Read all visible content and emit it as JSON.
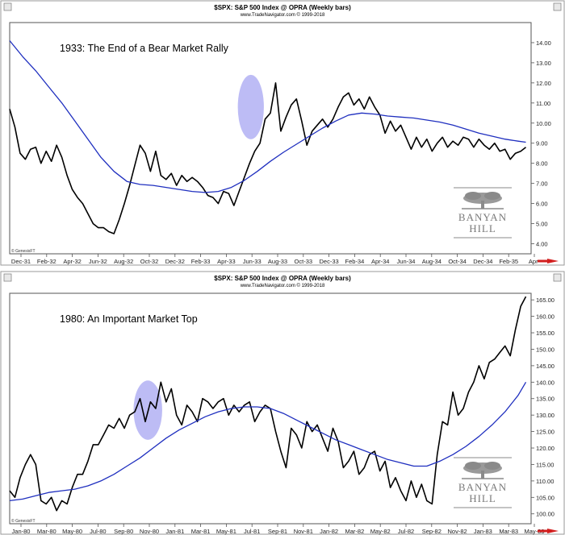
{
  "chart_data": [
    {
      "type": "line",
      "header": "$SPX:  S&P 500 Index @ OPRA  (Weekly bars)",
      "subheader": "www.TradeNavigator.com © 1999-2018",
      "annotation": "1933: The End of a Bear Market Rally",
      "watermark": "© GenesisFT",
      "logo": "BANYAN HILL",
      "ylim": [
        3.5,
        15.0
      ],
      "yticks": [
        4,
        5,
        6,
        7,
        8,
        9,
        10,
        11,
        12,
        13,
        14
      ],
      "ytick_labels": [
        "4.00",
        "5.00",
        "6.00",
        "7.00",
        "8.00",
        "9.00",
        "10.00",
        "11.00",
        "12.00",
        "13.00",
        "14.00"
      ],
      "x_tick_labels": [
        "Dec-31",
        "Feb-32",
        "Apr-32",
        "Jun-32",
        "Aug-32",
        "Oct-32",
        "Dec-32",
        "Feb-33",
        "Apr-33",
        "Jun-33",
        "Aug-33",
        "Oct-33",
        "Dec-33",
        "Feb-34",
        "Apr-34",
        "Jun-34",
        "Aug-34",
        "Oct-34",
        "Dec-34",
        "Feb-35",
        "Apr-"
      ],
      "x_range": [
        0,
        20
      ],
      "highlight": {
        "x": 9.25,
        "y": 10.8,
        "rx": 0.5,
        "ry": 1.6
      },
      "series": [
        {
          "color": "#000000",
          "x": [
            0,
            0.2,
            0.4,
            0.6,
            0.8,
            1.0,
            1.2,
            1.4,
            1.6,
            1.8,
            2.0,
            2.2,
            2.4,
            2.6,
            2.8,
            3.0,
            3.2,
            3.4,
            3.6,
            3.8,
            4.0,
            4.2,
            4.4,
            4.6,
            4.8,
            5.0,
            5.2,
            5.4,
            5.6,
            5.8,
            6.0,
            6.2,
            6.4,
            6.6,
            6.8,
            7.0,
            7.2,
            7.4,
            7.6,
            7.8,
            8.0,
            8.2,
            8.4,
            8.6,
            8.8,
            9.0,
            9.2,
            9.4,
            9.6,
            9.8,
            10.0,
            10.2,
            10.4,
            10.6,
            10.8,
            11.0,
            11.2,
            11.4,
            11.6,
            11.8,
            12.0,
            12.2,
            12.4,
            12.6,
            12.8,
            13.0,
            13.2,
            13.4,
            13.6,
            13.8,
            14.0,
            14.2,
            14.4,
            14.6,
            14.8,
            15.0,
            15.2,
            15.4,
            15.6,
            15.8,
            16.0,
            16.2,
            16.4,
            16.6,
            16.8,
            17.0,
            17.2,
            17.4,
            17.6,
            17.8,
            18.0,
            18.2,
            18.4,
            18.6,
            18.8,
            19.0,
            19.2,
            19.4,
            19.6,
            19.8
          ],
          "values": [
            10.7,
            9.8,
            8.5,
            8.2,
            8.7,
            8.8,
            8.0,
            8.6,
            8.1,
            8.9,
            8.3,
            7.4,
            6.7,
            6.3,
            6.0,
            5.5,
            5.0,
            4.8,
            4.8,
            4.6,
            4.5,
            5.2,
            6.0,
            6.9,
            7.9,
            8.9,
            8.5,
            7.6,
            8.6,
            7.4,
            7.2,
            7.5,
            6.9,
            7.4,
            7.1,
            7.3,
            7.1,
            6.8,
            6.4,
            6.3,
            6.0,
            6.6,
            6.5,
            5.9,
            6.6,
            7.3,
            8.0,
            8.6,
            9.0,
            10.2,
            10.5,
            12.0,
            9.6,
            10.3,
            10.9,
            11.2,
            10.1,
            8.9,
            9.6,
            9.9,
            10.2,
            9.8,
            10.2,
            10.8,
            11.3,
            11.5,
            10.9,
            11.2,
            10.7,
            11.3,
            10.8,
            10.4,
            9.5,
            10.1,
            9.6,
            9.9,
            9.3,
            8.7,
            9.3,
            8.8,
            9.2,
            8.6,
            9.0,
            9.3,
            8.8,
            9.1,
            8.9,
            9.3,
            9.2,
            8.8,
            9.2,
            8.9,
            8.7,
            9.0,
            8.6,
            8.7,
            8.2,
            8.5,
            8.6,
            8.8
          ]
        },
        {
          "color": "#1f2fbf",
          "x": [
            0,
            0.5,
            1.0,
            1.5,
            2.0,
            2.5,
            3.0,
            3.5,
            4.0,
            4.5,
            5.0,
            5.5,
            6.0,
            6.5,
            7.0,
            7.5,
            8.0,
            8.5,
            9.0,
            9.5,
            10.0,
            10.5,
            11.0,
            11.5,
            12.0,
            12.5,
            13.0,
            13.5,
            14.0,
            14.5,
            15.0,
            15.5,
            16.0,
            16.5,
            17.0,
            17.5,
            18.0,
            18.5,
            19.0,
            19.5,
            19.8
          ],
          "values": [
            14.1,
            13.3,
            12.6,
            11.8,
            11.0,
            10.1,
            9.2,
            8.3,
            7.6,
            7.1,
            6.95,
            6.9,
            6.8,
            6.7,
            6.6,
            6.55,
            6.6,
            6.8,
            7.15,
            7.6,
            8.1,
            8.55,
            8.95,
            9.35,
            9.75,
            10.1,
            10.4,
            10.5,
            10.45,
            10.35,
            10.3,
            10.25,
            10.15,
            10.05,
            9.9,
            9.7,
            9.5,
            9.35,
            9.2,
            9.1,
            9.05
          ]
        }
      ]
    },
    {
      "type": "line",
      "header": "$SPX:  S&P 500 Index @ OPRA  (Weekly bars)",
      "subheader": "www.TradeNavigator.com © 1999-2018",
      "annotation": "1980: An Important Market Top",
      "watermark": "© GenesisFT",
      "logo": "BANYAN HILL",
      "ylim": [
        97.0,
        167.0
      ],
      "yticks": [
        100,
        105,
        110,
        115,
        120,
        125,
        130,
        135,
        140,
        145,
        150,
        155,
        160,
        165
      ],
      "ytick_labels": [
        "100.00",
        "105.00",
        "110.00",
        "115.00",
        "120.00",
        "125.00",
        "130.00",
        "135.00",
        "140.00",
        "145.00",
        "150.00",
        "155.00",
        "160.00",
        "165.00"
      ],
      "x_tick_labels": [
        "Jan-80",
        "Mar-80",
        "May-80",
        "Jul-80",
        "Sep-80",
        "Nov-80",
        "Jan-81",
        "Mar-81",
        "May-81",
        "Jul-81",
        "Sep-81",
        "Nov-81",
        "Jan-82",
        "Mar-82",
        "May-82",
        "Jul-82",
        "Sep-82",
        "Nov-82",
        "Jan-83",
        "Mar-83",
        "May-83"
      ],
      "x_range": [
        0,
        20
      ],
      "highlight": {
        "x": 5.3,
        "y": 131.5,
        "rx": 0.55,
        "ry": 9.0
      },
      "series": [
        {
          "color": "#000000",
          "x": [
            0,
            0.2,
            0.4,
            0.6,
            0.8,
            1.0,
            1.2,
            1.4,
            1.6,
            1.8,
            2.0,
            2.2,
            2.4,
            2.6,
            2.8,
            3.0,
            3.2,
            3.4,
            3.6,
            3.8,
            4.0,
            4.2,
            4.4,
            4.6,
            4.8,
            5.0,
            5.2,
            5.4,
            5.6,
            5.8,
            6.0,
            6.2,
            6.4,
            6.6,
            6.8,
            7.0,
            7.2,
            7.4,
            7.6,
            7.8,
            8.0,
            8.2,
            8.4,
            8.6,
            8.8,
            9.0,
            9.2,
            9.4,
            9.6,
            9.8,
            10.0,
            10.2,
            10.4,
            10.6,
            10.8,
            11.0,
            11.2,
            11.4,
            11.6,
            11.8,
            12.0,
            12.2,
            12.4,
            12.6,
            12.8,
            13.0,
            13.2,
            13.4,
            13.6,
            13.8,
            14.0,
            14.2,
            14.4,
            14.6,
            14.8,
            15.0,
            15.2,
            15.4,
            15.6,
            15.8,
            16.0,
            16.2,
            16.4,
            16.6,
            16.8,
            17.0,
            17.2,
            17.4,
            17.6,
            17.8,
            18.0,
            18.2,
            18.4,
            18.6,
            18.8,
            19.0,
            19.2,
            19.4,
            19.6,
            19.8
          ],
          "values": [
            107,
            105,
            111,
            115,
            118,
            115,
            104,
            103,
            105,
            101,
            104,
            103,
            108,
            112,
            112,
            116,
            121,
            121,
            124,
            127,
            126,
            129,
            126,
            130,
            131,
            135,
            128,
            134,
            132,
            140,
            134,
            138,
            130,
            127,
            133,
            131,
            128,
            135,
            134,
            132,
            134,
            135,
            130,
            133,
            131,
            133,
            134,
            128,
            131,
            133,
            132,
            125,
            119,
            114,
            126,
            124,
            120,
            128,
            125,
            127,
            123,
            119,
            126,
            122,
            114,
            116,
            119,
            112,
            114,
            118,
            119,
            113,
            116,
            108,
            111,
            107,
            104,
            110,
            105,
            109,
            104,
            103,
            118,
            128,
            127,
            137,
            130,
            132,
            137,
            140,
            145,
            141,
            146,
            147,
            149,
            151,
            148,
            156,
            163,
            166
          ]
        },
        {
          "color": "#1f2fbf",
          "x": [
            0,
            0.5,
            1.0,
            1.5,
            2.0,
            2.5,
            3.0,
            3.5,
            4.0,
            4.5,
            5.0,
            5.5,
            6.0,
            6.5,
            7.0,
            7.5,
            8.0,
            8.5,
            9.0,
            9.5,
            10.0,
            10.5,
            11.0,
            11.5,
            12.0,
            12.5,
            13.0,
            13.5,
            14.0,
            14.5,
            15.0,
            15.5,
            16.0,
            16.5,
            17.0,
            17.5,
            18.0,
            18.5,
            19.0,
            19.5,
            19.8
          ],
          "values": [
            104,
            104.5,
            105.5,
            106.5,
            107,
            107.5,
            108.5,
            110,
            112,
            114.5,
            117,
            120,
            123,
            125.5,
            127.5,
            129.5,
            131,
            132,
            132.5,
            132.5,
            132,
            130.5,
            128.5,
            126.5,
            124.5,
            122.5,
            121,
            119.5,
            118,
            116.5,
            115.5,
            114.5,
            114.5,
            116,
            118,
            120.5,
            123.5,
            127,
            131,
            136,
            140
          ]
        }
      ]
    }
  ]
}
